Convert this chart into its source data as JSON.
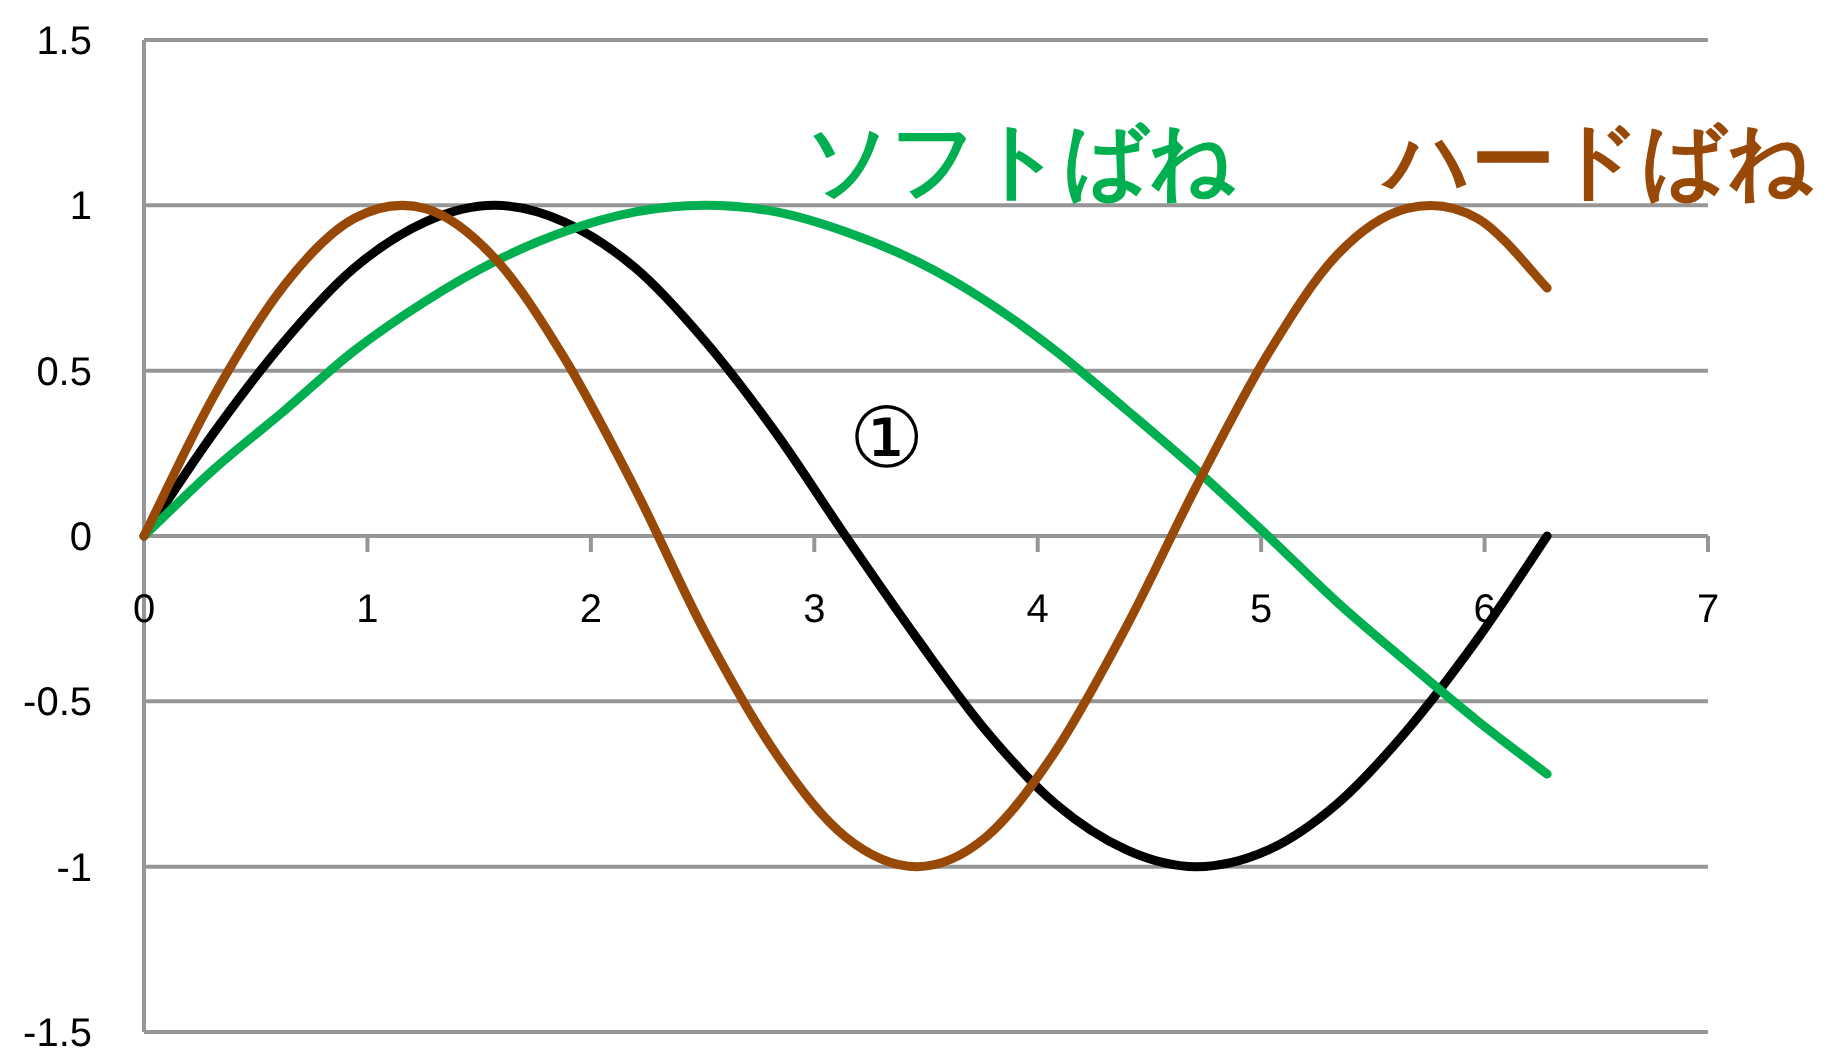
{
  "chart_data": {
    "type": "line",
    "x": [
      0,
      0.31,
      0.63,
      0.94,
      1.26,
      1.57,
      1.88,
      2.2,
      2.51,
      2.83,
      3.14,
      3.46,
      3.77,
      4.08,
      4.4,
      4.71,
      5.03,
      5.34,
      5.65,
      5.97,
      6.28
    ],
    "series": [
      {
        "color": "#000000",
        "values": [
          0,
          0.31,
          0.59,
          0.81,
          0.95,
          1,
          0.95,
          0.81,
          0.59,
          0.31,
          0,
          -0.31,
          -0.59,
          -0.81,
          -0.95,
          -1,
          -0.95,
          -0.81,
          -0.59,
          -0.31,
          0
        ]
      },
      {
        "name": "ソフトばね",
        "color": "#00b050",
        "values": [
          0,
          0.2,
          0.38,
          0.56,
          0.71,
          0.83,
          0.92,
          0.98,
          1,
          0.98,
          0.92,
          0.83,
          0.71,
          0.56,
          0.38,
          0.2,
          0,
          -0.2,
          -0.38,
          -0.56,
          -0.72
        ]
      },
      {
        "name": "ハードばね",
        "color": "#984807",
        "values": [
          0,
          0.42,
          0.76,
          0.96,
          0.99,
          0.84,
          0.54,
          0.14,
          -0.29,
          -0.66,
          -0.91,
          -1,
          -0.91,
          -0.65,
          -0.27,
          0.15,
          0.55,
          0.85,
          0.99,
          0.96,
          0.75
        ]
      }
    ],
    "annotations": [
      "①"
    ],
    "xlim": [
      0,
      7
    ],
    "xticks": [
      0,
      1,
      2,
      3,
      4,
      5,
      6,
      7
    ],
    "ylim": [
      -1.5,
      1.5
    ],
    "yticks": [
      -1.5,
      -1,
      -0.5,
      0,
      0.5,
      1,
      1.5
    ],
    "grid": "y",
    "marker": "none",
    "line_style": "solid"
  }
}
